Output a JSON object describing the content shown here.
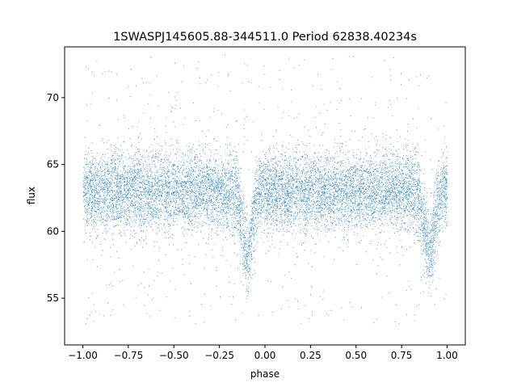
{
  "chart_data": {
    "type": "scatter",
    "title": "1SWASPJ145605.88-344511.0 Period 62838.40234s",
    "xlabel": "phase",
    "ylabel": "flux",
    "xlim": [
      -1.1,
      1.1
    ],
    "ylim": [
      51.5,
      73.8
    ],
    "xticks": [
      -1.0,
      -0.75,
      -0.5,
      -0.25,
      0.0,
      0.25,
      0.5,
      0.75,
      1.0
    ],
    "xtick_labels": [
      "−1.00",
      "−0.75",
      "−0.50",
      "−0.25",
      "0.00",
      "0.25",
      "0.50",
      "0.75",
      "1.00"
    ],
    "yticks": [
      55,
      60,
      65,
      70
    ],
    "ytick_labels": [
      "55",
      "60",
      "65",
      "70"
    ],
    "grid": false,
    "legend": "none",
    "marker_color": "#1f77b4",
    "series": [
      {
        "x_range": [
          -1.0,
          1.0
        ],
        "baseline_flux": 63.0,
        "spread_sigma": 1.5,
        "outlier_range": [
          53.0,
          73.2
        ],
        "eclipses": [
          {
            "phase": -0.1,
            "min_flux": 58.5
          },
          {
            "phase": 0.9,
            "min_flux": 58.5
          }
        ],
        "points": [
          {
            "x": -0.75,
            "y": 63.1
          },
          {
            "x": -0.5,
            "y": 62.9
          },
          {
            "x": -0.25,
            "y": 63.0
          },
          {
            "x": -0.1,
            "y": 58.3
          },
          {
            "x": 0.0,
            "y": 62.8
          },
          {
            "x": 0.25,
            "y": 63.2
          },
          {
            "x": 0.5,
            "y": 63.0
          },
          {
            "x": 0.75,
            "y": 62.9
          },
          {
            "x": 0.9,
            "y": 58.6
          },
          {
            "x": 1.0,
            "y": 62.5
          }
        ]
      }
    ]
  }
}
